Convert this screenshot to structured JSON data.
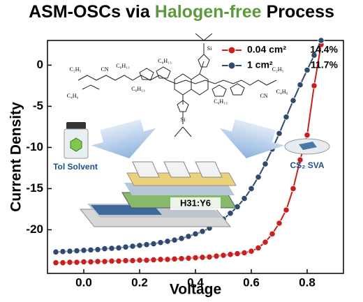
{
  "chart_data": {
    "type": "line",
    "title_parts": [
      "ASM-OSCs via",
      "Halogen-free",
      "Process"
    ],
    "title_colors": [
      "#000000",
      "#5b9a3c",
      "#000000"
    ],
    "x_label": "Voltage",
    "y_label": "Current Density",
    "xlim": [
      -0.13,
      0.93
    ],
    "ylim": [
      -25.3,
      3
    ],
    "xticks": [
      {
        "value": 0,
        "label": "0.0"
      },
      0.2,
      0.4,
      0.6,
      0.8
    ],
    "yticks": [
      0,
      -5,
      -10,
      -15,
      -20
    ],
    "legend": "upper right",
    "x": [
      -0.1,
      -0.075,
      -0.05,
      -0.025,
      0,
      0.025,
      0.05,
      0.075,
      0.1,
      0.125,
      0.15,
      0.175,
      0.2,
      0.225,
      0.25,
      0.275,
      0.3,
      0.325,
      0.35,
      0.375,
      0.4,
      0.425,
      0.45,
      0.475,
      0.5,
      0.525,
      0.55,
      0.575,
      0.6,
      0.625,
      0.65,
      0.675,
      0.7,
      0.725,
      0.75,
      0.775,
      0.8,
      0.825,
      0.85
    ],
    "series": [
      {
        "name": "0.04 cm²",
        "pce": "14.4%",
        "color": "#c8201e",
        "values": [
          -24.0,
          -24.0,
          -23.95,
          -23.95,
          -23.9,
          -23.9,
          -23.85,
          -23.85,
          -23.8,
          -23.8,
          -23.75,
          -23.75,
          -23.7,
          -23.7,
          -23.65,
          -23.6,
          -23.6,
          -23.55,
          -23.5,
          -23.45,
          -23.4,
          -23.35,
          -23.3,
          -23.2,
          -23.1,
          -23.0,
          -22.9,
          -22.8,
          -22.6,
          -22.2,
          -21.5,
          -20.5,
          -19.2,
          -17.6,
          -15.0,
          -11.5,
          -8.5,
          -2.5,
          2.5
        ]
      },
      {
        "name": "1 cm²",
        "pce": "11.7%",
        "color": "#2f4a6e",
        "values": [
          -22.7,
          -22.65,
          -22.6,
          -22.55,
          -22.5,
          -22.45,
          -22.4,
          -22.3,
          -22.25,
          -22.2,
          -22.1,
          -22.0,
          -21.9,
          -21.8,
          -21.7,
          -21.55,
          -21.4,
          -21.25,
          -21.05,
          -20.8,
          -20.5,
          -20.2,
          -19.8,
          -19.3,
          -18.7,
          -18.0,
          -17.2,
          -16.2,
          -15.0,
          -13.6,
          -12.0,
          -10.2,
          -8.3,
          -6.3,
          -4.3,
          -2.4,
          -0.6,
          1.2,
          3.0
        ]
      }
    ],
    "annotations": {
      "solvent": "Tol Solvent",
      "annealing": "CS₂ SVA",
      "active_layer": "H31:Y6"
    },
    "molecule_labels": [
      "C₂H₅",
      "C₄H₉",
      "CN",
      "C₆H₁₃",
      "C₆H₁₃",
      "Si",
      "C₆H₁₃",
      "C₆H₁₃",
      "Si",
      "CN",
      "C₂H₅",
      "C₄H₉"
    ]
  }
}
